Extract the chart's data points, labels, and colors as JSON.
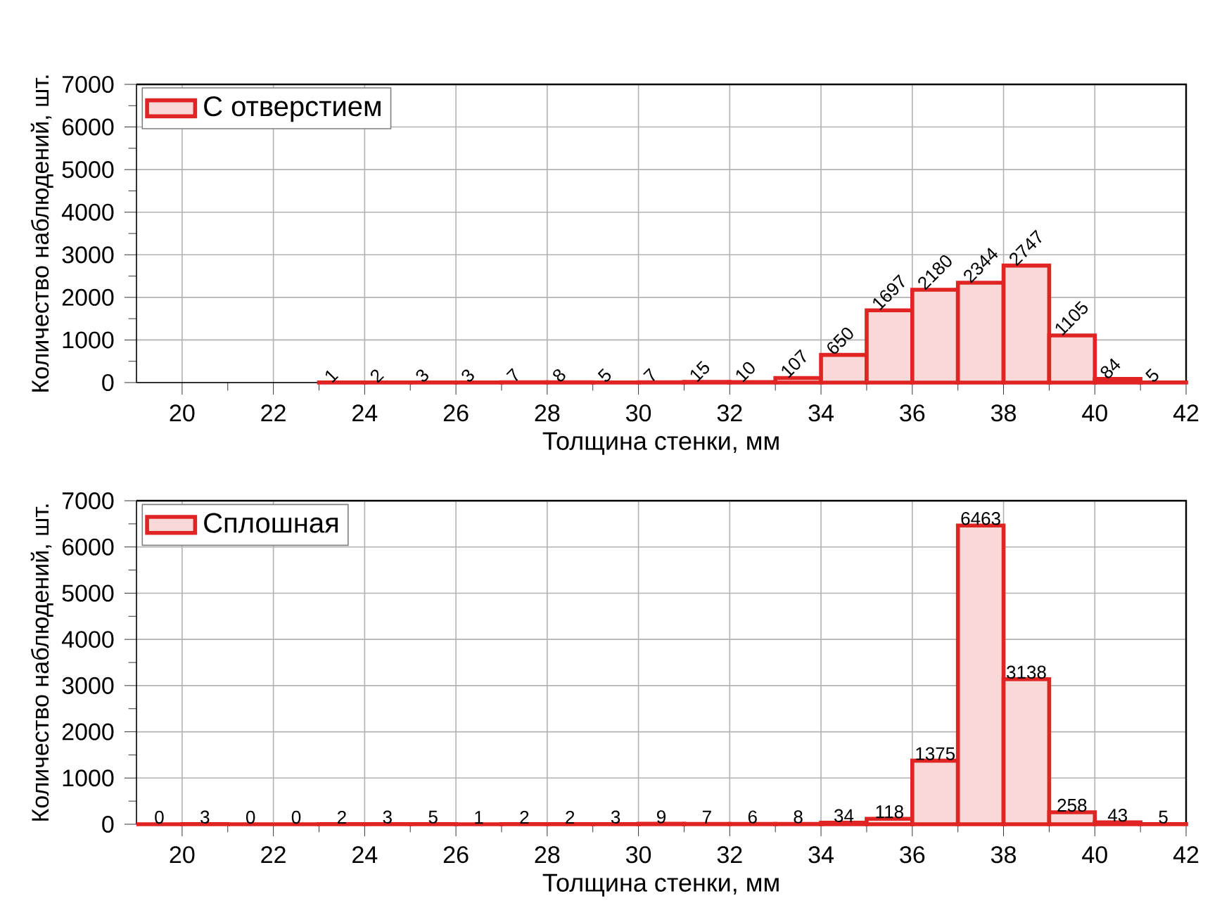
{
  "chart_data": [
    {
      "type": "histogram",
      "xlabel": "Толщина стенки, мм",
      "ylabel": "Количество наблюдений, шт.",
      "xlim": [
        19,
        42
      ],
      "xticks": [
        20,
        22,
        24,
        26,
        28,
        30,
        32,
        34,
        36,
        38,
        40,
        42
      ],
      "ylim": [
        0,
        7000
      ],
      "yticks": [
        0,
        1000,
        2000,
        3000,
        4000,
        5000,
        6000,
        7000
      ],
      "grid": true,
      "legend": "top left",
      "data_labels": true,
      "bins": [
        23,
        24,
        25,
        26,
        27,
        28,
        29,
        30,
        31,
        32,
        33,
        34,
        35,
        36,
        37,
        38,
        39,
        40,
        41,
        42
      ],
      "series": [
        {
          "name": "С отверстием",
          "color": "#e02424",
          "values": [
            1,
            2,
            3,
            3,
            7,
            8,
            5,
            7,
            15,
            10,
            107,
            650,
            1697,
            2180,
            2344,
            2747,
            1105,
            84,
            5
          ]
        }
      ]
    },
    {
      "type": "histogram",
      "xlabel": "Толщина стенки, мм",
      "ylabel": "Количество наблюдений, шт.",
      "xlim": [
        19,
        42
      ],
      "xticks": [
        20,
        22,
        24,
        26,
        28,
        30,
        32,
        34,
        36,
        38,
        40,
        42
      ],
      "ylim": [
        0,
        7000
      ],
      "yticks": [
        0,
        1000,
        2000,
        3000,
        4000,
        5000,
        6000,
        7000
      ],
      "grid": true,
      "legend": "top left",
      "data_labels": true,
      "bins": [
        19,
        20,
        21,
        22,
        23,
        24,
        25,
        26,
        27,
        28,
        29,
        30,
        31,
        32,
        33,
        34,
        35,
        36,
        37,
        38,
        39,
        40,
        41,
        42
      ],
      "series": [
        {
          "name": "Сплошная",
          "color": "#e02424",
          "values": [
            0,
            3,
            0,
            0,
            2,
            3,
            5,
            1,
            2,
            2,
            3,
            9,
            7,
            6,
            8,
            34,
            118,
            1375,
            6463,
            3138,
            258,
            43,
            5
          ]
        }
      ]
    }
  ]
}
